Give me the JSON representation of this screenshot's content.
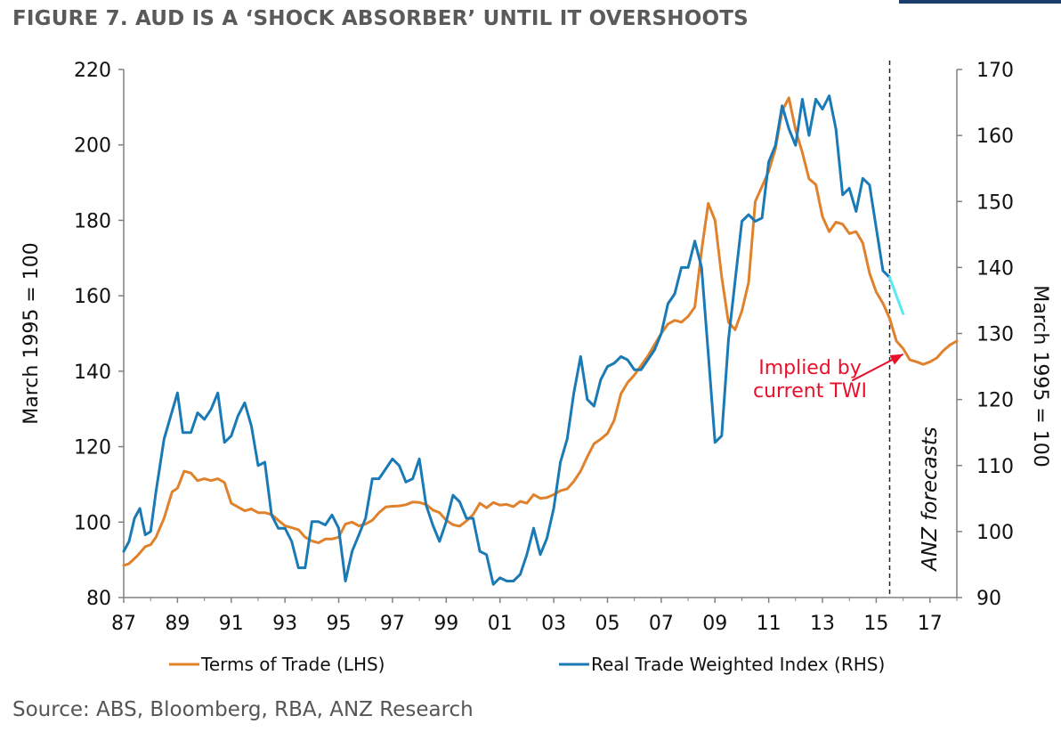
{
  "title": "FIGURE 7. AUD IS A ‘SHOCK ABSORBER’ UNTIL IT OVERSHOOTS",
  "source": "Source: ABS, Bloomberg, RBA, ANZ Research",
  "colors": {
    "tot": "#e0812b",
    "twi": "#1a7ab5",
    "projection": "#5ce8f2",
    "annotation": "#e8102a",
    "axis": "#808080",
    "title": "#5a5a5a"
  },
  "chart_data": {
    "type": "line",
    "xlabel": "",
    "ylabel_left": "March 1995 = 100",
    "ylabel_right": "March 1995 = 100",
    "xlim": [
      1987,
      2018
    ],
    "ylim_left": [
      80,
      220
    ],
    "ylim_right": [
      90,
      170
    ],
    "x_ticks": [
      "87",
      "89",
      "91",
      "93",
      "95",
      "97",
      "99",
      "01",
      "03",
      "05",
      "07",
      "09",
      "11",
      "13",
      "15",
      "17"
    ],
    "y_ticks_left": [
      "80",
      "100",
      "120",
      "140",
      "160",
      "180",
      "200",
      "220"
    ],
    "y_ticks_right": [
      "90",
      "100",
      "110",
      "120",
      "130",
      "140",
      "150",
      "160",
      "170"
    ],
    "grid": false,
    "legend_position": "bottom",
    "forecast_start": 2015.5,
    "forecast_label": "ANZ forecasts",
    "annotation": {
      "text_line1": "Implied by",
      "text_line2": "current TWI",
      "arrow_from": [
        2014.1,
        137.5
      ],
      "arrow_to": [
        2016.0,
        144.5
      ]
    },
    "series": [
      {
        "name": "Terms of Trade (LHS)",
        "axis": "left",
        "points": [
          [
            1987.0,
            88.5
          ],
          [
            1987.2,
            89
          ],
          [
            1987.5,
            91
          ],
          [
            1987.8,
            93.5
          ],
          [
            1988.0,
            94
          ],
          [
            1988.2,
            96
          ],
          [
            1988.5,
            101
          ],
          [
            1988.8,
            108
          ],
          [
            1989.0,
            109
          ],
          [
            1989.25,
            113.5
          ],
          [
            1989.5,
            113
          ],
          [
            1989.75,
            111
          ],
          [
            1990.0,
            111.5
          ],
          [
            1990.25,
            111
          ],
          [
            1990.5,
            111.5
          ],
          [
            1990.75,
            110.5
          ],
          [
            1991.0,
            105
          ],
          [
            1991.25,
            104
          ],
          [
            1991.5,
            103
          ],
          [
            1991.75,
            103.5
          ],
          [
            1992.0,
            102.5
          ],
          [
            1992.25,
            102.5
          ],
          [
            1992.5,
            102
          ],
          [
            1992.75,
            100.5
          ],
          [
            1993.0,
            99
          ],
          [
            1993.25,
            98.5
          ],
          [
            1993.5,
            98
          ],
          [
            1993.75,
            96
          ],
          [
            1994.0,
            95
          ],
          [
            1994.25,
            94.5
          ],
          [
            1994.5,
            95.5
          ],
          [
            1994.75,
            95.5
          ],
          [
            1995.0,
            96
          ],
          [
            1995.25,
            99.5
          ],
          [
            1995.5,
            100
          ],
          [
            1995.75,
            99
          ],
          [
            1996.0,
            99.5
          ],
          [
            1996.25,
            100.5
          ],
          [
            1996.5,
            102.5
          ],
          [
            1996.75,
            104
          ],
          [
            1997.0,
            104.2
          ],
          [
            1997.25,
            104.3
          ],
          [
            1997.5,
            104.6
          ],
          [
            1997.75,
            105.3
          ],
          [
            1998.0,
            105.2
          ],
          [
            1998.25,
            104.7
          ],
          [
            1998.5,
            103.2
          ],
          [
            1998.75,
            102.5
          ],
          [
            1999.0,
            100.5
          ],
          [
            1999.25,
            99.3
          ],
          [
            1999.5,
            98.9
          ],
          [
            1999.75,
            100.3
          ],
          [
            2000.0,
            102
          ],
          [
            2000.25,
            105
          ],
          [
            2000.5,
            103.8
          ],
          [
            2000.75,
            105.2
          ],
          [
            2001.0,
            104.5
          ],
          [
            2001.25,
            104.7
          ],
          [
            2001.5,
            104.1
          ],
          [
            2001.75,
            105.5
          ],
          [
            2002.0,
            105
          ],
          [
            2002.25,
            107.3
          ],
          [
            2002.5,
            106.3
          ],
          [
            2002.75,
            106.5
          ],
          [
            2003.0,
            107.3
          ],
          [
            2003.25,
            108.3
          ],
          [
            2003.5,
            108.8
          ],
          [
            2003.75,
            110.8
          ],
          [
            2004.0,
            113.5
          ],
          [
            2004.25,
            117.3
          ],
          [
            2004.5,
            120.8
          ],
          [
            2004.75,
            122
          ],
          [
            2005.0,
            123.5
          ],
          [
            2005.25,
            127
          ],
          [
            2005.5,
            134
          ],
          [
            2005.75,
            137
          ],
          [
            2006.0,
            139
          ],
          [
            2006.25,
            141.5
          ],
          [
            2006.5,
            144
          ],
          [
            2006.75,
            147
          ],
          [
            2007.0,
            150
          ],
          [
            2007.25,
            152.5
          ],
          [
            2007.5,
            153.5
          ],
          [
            2007.75,
            153
          ],
          [
            2008.0,
            154.5
          ],
          [
            2008.25,
            157
          ],
          [
            2008.5,
            172
          ],
          [
            2008.75,
            184.5
          ],
          [
            2009.0,
            180
          ],
          [
            2009.25,
            165
          ],
          [
            2009.5,
            153
          ],
          [
            2009.75,
            151
          ],
          [
            2010.0,
            156
          ],
          [
            2010.25,
            163.5
          ],
          [
            2010.5,
            185
          ],
          [
            2010.75,
            189
          ],
          [
            2011.0,
            193
          ],
          [
            2011.25,
            199
          ],
          [
            2011.5,
            209
          ],
          [
            2011.75,
            212.5
          ],
          [
            2012.0,
            204
          ],
          [
            2012.25,
            198
          ],
          [
            2012.5,
            191
          ],
          [
            2012.75,
            189.5
          ],
          [
            2013.0,
            181
          ],
          [
            2013.25,
            177
          ],
          [
            2013.5,
            179.5
          ],
          [
            2013.75,
            179
          ],
          [
            2014.0,
            176.5
          ],
          [
            2014.25,
            177
          ],
          [
            2014.5,
            174
          ],
          [
            2014.75,
            166
          ],
          [
            2015.0,
            161
          ],
          [
            2015.25,
            158
          ],
          [
            2015.5,
            154
          ],
          [
            2015.75,
            148
          ],
          [
            2016.0,
            146
          ],
          [
            2016.25,
            143
          ],
          [
            2016.5,
            142.5
          ],
          [
            2016.75,
            141.8
          ],
          [
            2017.0,
            142.5
          ],
          [
            2017.25,
            143.5
          ],
          [
            2017.5,
            145.5
          ],
          [
            2017.75,
            147
          ],
          [
            2018.0,
            148
          ]
        ]
      },
      {
        "name": "Real Trade Weighted Index (RHS)",
        "axis": "right",
        "points": [
          [
            1987.0,
            97
          ],
          [
            1987.2,
            98.5
          ],
          [
            1987.4,
            102
          ],
          [
            1987.6,
            103.5
          ],
          [
            1987.8,
            99.5
          ],
          [
            1988.0,
            100
          ],
          [
            1988.2,
            106
          ],
          [
            1988.5,
            114
          ],
          [
            1988.75,
            117.5
          ],
          [
            1989.0,
            121
          ],
          [
            1989.2,
            115
          ],
          [
            1989.5,
            115
          ],
          [
            1989.75,
            118
          ],
          [
            1990.0,
            117
          ],
          [
            1990.25,
            118.5
          ],
          [
            1990.5,
            121
          ],
          [
            1990.75,
            113.5
          ],
          [
            1991.0,
            114.5
          ],
          [
            1991.25,
            117.5
          ],
          [
            1991.5,
            119.5
          ],
          [
            1991.75,
            116
          ],
          [
            1992.0,
            110
          ],
          [
            1992.25,
            110.5
          ],
          [
            1992.5,
            102.5
          ],
          [
            1992.75,
            100.5
          ],
          [
            1993.0,
            100.5
          ],
          [
            1993.25,
            98.5
          ],
          [
            1993.5,
            94.5
          ],
          [
            1993.75,
            94.5
          ],
          [
            1994.0,
            101.5
          ],
          [
            1994.25,
            101.5
          ],
          [
            1994.5,
            101
          ],
          [
            1994.75,
            102.5
          ],
          [
            1995.0,
            100.5
          ],
          [
            1995.25,
            92.5
          ],
          [
            1995.5,
            97
          ],
          [
            1995.75,
            99.5
          ],
          [
            1996.0,
            102
          ],
          [
            1996.25,
            108
          ],
          [
            1996.5,
            108
          ],
          [
            1996.75,
            109.5
          ],
          [
            1997.0,
            111
          ],
          [
            1997.25,
            110
          ],
          [
            1997.5,
            107.5
          ],
          [
            1997.75,
            108
          ],
          [
            1998.0,
            111
          ],
          [
            1998.25,
            104
          ],
          [
            1998.5,
            101
          ],
          [
            1998.75,
            98.5
          ],
          [
            1999.0,
            101.5
          ],
          [
            1999.25,
            105.5
          ],
          [
            1999.5,
            104.5
          ],
          [
            1999.75,
            102
          ],
          [
            2000.0,
            102
          ],
          [
            2000.25,
            97
          ],
          [
            2000.5,
            96.5
          ],
          [
            2000.75,
            92
          ],
          [
            2001.0,
            93
          ],
          [
            2001.25,
            92.5
          ],
          [
            2001.5,
            92.5
          ],
          [
            2001.75,
            93.5
          ],
          [
            2002.0,
            96.5
          ],
          [
            2002.25,
            100.5
          ],
          [
            2002.5,
            96.5
          ],
          [
            2002.75,
            99
          ],
          [
            2003.0,
            103.5
          ],
          [
            2003.25,
            110.5
          ],
          [
            2003.5,
            114
          ],
          [
            2003.75,
            121
          ],
          [
            2004.0,
            126.5
          ],
          [
            2004.25,
            120
          ],
          [
            2004.5,
            119
          ],
          [
            2004.75,
            123
          ],
          [
            2005.0,
            125
          ],
          [
            2005.25,
            125.5
          ],
          [
            2005.5,
            126.5
          ],
          [
            2005.75,
            126
          ],
          [
            2006.0,
            124.5
          ],
          [
            2006.25,
            124.5
          ],
          [
            2006.5,
            126
          ],
          [
            2006.75,
            127.5
          ],
          [
            2007.0,
            130
          ],
          [
            2007.25,
            134.5
          ],
          [
            2007.5,
            136
          ],
          [
            2007.75,
            140
          ],
          [
            2008.0,
            140
          ],
          [
            2008.25,
            144
          ],
          [
            2008.5,
            140
          ],
          [
            2008.75,
            127
          ],
          [
            2009.0,
            113.5
          ],
          [
            2009.25,
            114.5
          ],
          [
            2009.5,
            129
          ],
          [
            2009.75,
            138
          ],
          [
            2010.0,
            147
          ],
          [
            2010.25,
            148
          ],
          [
            2010.5,
            147
          ],
          [
            2010.75,
            147.5
          ],
          [
            2011.0,
            156
          ],
          [
            2011.25,
            158.5
          ],
          [
            2011.5,
            164.5
          ],
          [
            2011.75,
            161
          ],
          [
            2012.0,
            158.5
          ],
          [
            2012.25,
            165.5
          ],
          [
            2012.5,
            160
          ],
          [
            2012.75,
            165.5
          ],
          [
            2013.0,
            164
          ],
          [
            2013.25,
            166
          ],
          [
            2013.5,
            161
          ],
          [
            2013.75,
            151
          ],
          [
            2014.0,
            152
          ],
          [
            2014.25,
            148.5
          ],
          [
            2014.5,
            153.5
          ],
          [
            2014.75,
            152.5
          ],
          [
            2015.0,
            146
          ],
          [
            2015.25,
            139.5
          ],
          [
            2015.5,
            138.5
          ]
        ]
      },
      {
        "name": "",
        "axis": "right",
        "projection": true,
        "points": [
          [
            2015.5,
            138.5
          ],
          [
            2016.0,
            133
          ]
        ]
      }
    ]
  }
}
